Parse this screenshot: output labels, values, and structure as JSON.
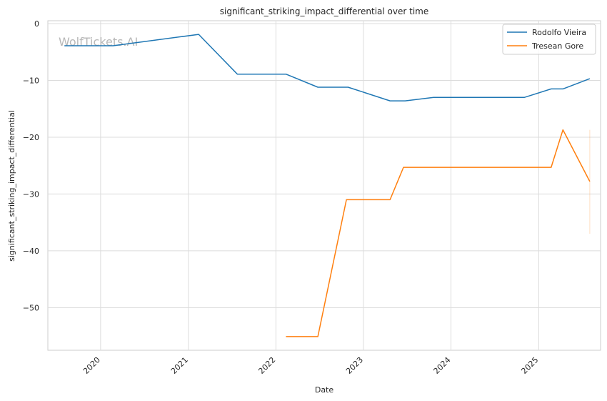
{
  "chart_data": {
    "type": "line",
    "title": "significant_striking_impact_differential over time",
    "xlabel": "Date",
    "ylabel": "significant_striking_impact_differential",
    "x_ticks": [
      "2020",
      "2021",
      "2022",
      "2023",
      "2024",
      "2025"
    ],
    "y_ticks": [
      0,
      -10,
      -20,
      -30,
      -40,
      -50
    ],
    "xlim": [
      "2019-05-26",
      "2025-09-16"
    ],
    "ylim": [
      -57.5,
      0.5
    ],
    "grid": true,
    "legend_position": "top-right",
    "watermark": "WolfTickets.AI",
    "series": [
      {
        "name": "Rodolfo Vieira",
        "color": "#1f77b4",
        "points": [
          [
            "2019-08-03",
            -3.9
          ],
          [
            "2020-02-22",
            -3.9
          ],
          [
            "2021-02-13",
            -1.9
          ],
          [
            "2021-07-24",
            -8.9
          ],
          [
            "2022-02-12",
            -8.9
          ],
          [
            "2022-06-25",
            -11.2
          ],
          [
            "2022-10-29",
            -11.2
          ],
          [
            "2023-04-22",
            -13.6
          ],
          [
            "2023-06-24",
            -13.6
          ],
          [
            "2023-10-21",
            -13.0
          ],
          [
            "2024-11-02",
            -13.0
          ],
          [
            "2025-02-22",
            -11.5
          ],
          [
            "2025-04-12",
            -11.5
          ],
          [
            "2025-08-02",
            -9.7
          ]
        ]
      },
      {
        "name": "Tresean Gore",
        "color": "#ff7f0e",
        "points": [
          [
            "2022-02-12",
            -55.1
          ],
          [
            "2022-06-25",
            -55.1
          ],
          [
            "2022-10-22",
            -31.0
          ],
          [
            "2023-04-22",
            -31.0
          ],
          [
            "2023-06-17",
            -25.3
          ],
          [
            "2025-02-22",
            -25.3
          ],
          [
            "2025-04-12",
            -18.7
          ],
          [
            "2025-08-02",
            -27.8
          ]
        ]
      }
    ],
    "error_band": {
      "series": "Tresean Gore",
      "x": "2025-08-02",
      "low": -37.0,
      "high": -18.7
    }
  }
}
